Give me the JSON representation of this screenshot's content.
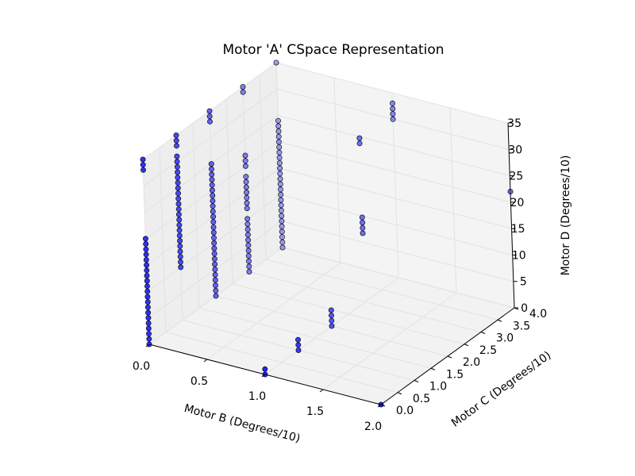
{
  "chart_data": {
    "type": "scatter",
    "projection": "3d",
    "title": "Motor 'A' CSpace Representation",
    "xlabel": "Motor B (Degrees/10)",
    "ylabel": "Motor C (Degrees/10)",
    "zlabel": "Motor D (Degrees/10)",
    "xlim": [
      0,
      2
    ],
    "ylim": [
      0,
      4
    ],
    "zlim": [
      0,
      35
    ],
    "xticks": [
      "0.0",
      "0.5",
      "1.0",
      "1.5",
      "2.0"
    ],
    "yticks": [
      "0.0",
      "0.5",
      "1.0",
      "1.5",
      "2.0",
      "2.5",
      "3.0",
      "3.5",
      "4.0"
    ],
    "zticks": [
      "0",
      "5",
      "10",
      "15",
      "20",
      "25",
      "30",
      "35"
    ],
    "grid": true,
    "marker_color": "#0000ff",
    "series": [
      {
        "columns": [
          {
            "x": 0.0,
            "y": 0.0,
            "z": [
              0,
              1,
              2,
              3,
              4,
              5,
              6,
              7,
              8,
              9,
              10,
              11,
              12,
              13,
              14,
              15,
              16,
              17,
              18,
              19,
              20,
              33,
              34,
              35
            ]
          },
          {
            "x": 0.0,
            "y": 1.0,
            "z": [
              10,
              11,
              12,
              13,
              14,
              15,
              16,
              17,
              18,
              19,
              20,
              21,
              22,
              23,
              24,
              25,
              26,
              27,
              28,
              29,
              30,
              31,
              33,
              34,
              35
            ]
          },
          {
            "x": 0.0,
            "y": 2.0,
            "z": [
              0,
              1,
              2,
              3,
              4,
              5,
              6,
              7,
              8,
              9,
              10,
              11,
              12,
              13,
              14,
              15,
              16,
              17,
              18,
              19,
              20,
              21,
              22,
              23,
              24,
              25,
              33,
              34,
              35
            ]
          },
          {
            "x": 0.0,
            "y": 3.0,
            "z": [
              0,
              1,
              2,
              3,
              4,
              5,
              6,
              7,
              8,
              9,
              10,
              12,
              13,
              14,
              15,
              16,
              17,
              18,
              20,
              21,
              22,
              34,
              35
            ]
          },
          {
            "x": 0.0,
            "y": 4.0,
            "z": [
              0,
              1,
              2,
              3,
              4,
              5,
              6,
              7,
              8,
              9,
              10,
              11,
              12,
              13,
              14,
              15,
              16,
              17,
              18,
              19,
              20,
              21,
              22,
              23,
              24,
              35
            ]
          },
          {
            "x": 1.0,
            "y": 0.0,
            "z": [
              0,
              1
            ]
          },
          {
            "x": 1.0,
            "y": 1.0,
            "z": [
              0,
              1,
              2
            ]
          },
          {
            "x": 1.0,
            "y": 2.0,
            "z": [
              0,
              1,
              2,
              3
            ]
          },
          {
            "x": 1.0,
            "y": 3.0,
            "z": [
              13,
              14,
              15,
              16,
              30,
              31
            ]
          },
          {
            "x": 1.0,
            "y": 4.0,
            "z": [
              30,
              31,
              32,
              33
            ]
          },
          {
            "x": 2.0,
            "y": 0.0,
            "z": [
              0
            ]
          },
          {
            "x": 2.0,
            "y": 4.0,
            "z": [
              22
            ]
          }
        ]
      }
    ]
  }
}
